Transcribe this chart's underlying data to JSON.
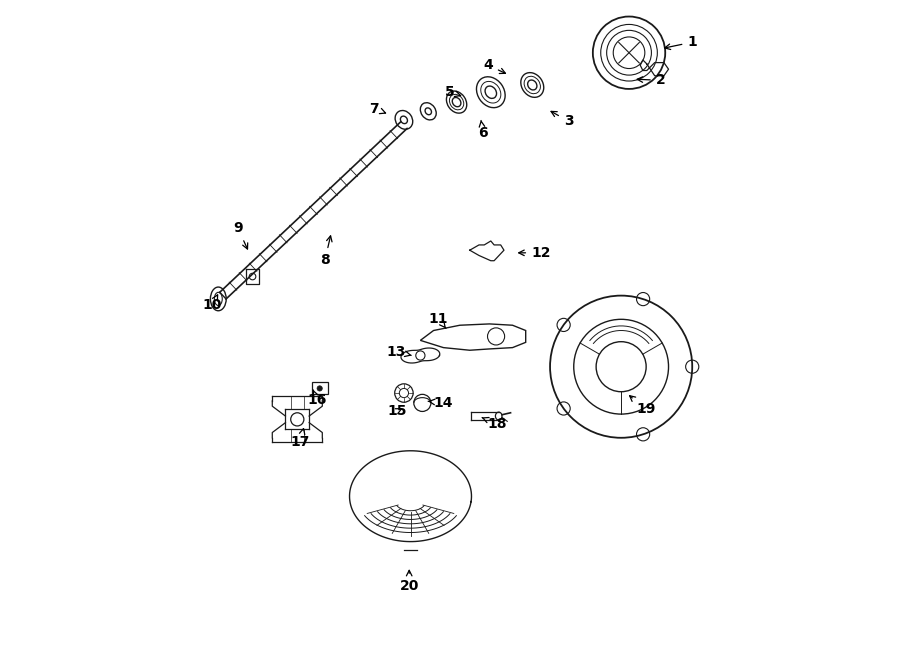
{
  "background_color": "#ffffff",
  "line_color": "#1a1a1a",
  "figsize": [
    9.0,
    6.61
  ],
  "dpi": 100,
  "label_data": [
    [
      1,
      0.868,
      0.938,
      0.82,
      0.928
    ],
    [
      2,
      0.82,
      0.88,
      0.778,
      0.882
    ],
    [
      3,
      0.68,
      0.818,
      0.648,
      0.836
    ],
    [
      4,
      0.558,
      0.903,
      0.59,
      0.888
    ],
    [
      5,
      0.5,
      0.862,
      0.522,
      0.855
    ],
    [
      6,
      0.55,
      0.8,
      0.547,
      0.82
    ],
    [
      7,
      0.385,
      0.837,
      0.408,
      0.828
    ],
    [
      8,
      0.31,
      0.607,
      0.32,
      0.65
    ],
    [
      9,
      0.178,
      0.655,
      0.195,
      0.618
    ],
    [
      10,
      0.138,
      0.538,
      0.148,
      0.556
    ],
    [
      11,
      0.482,
      0.518,
      0.494,
      0.503
    ],
    [
      12,
      0.638,
      0.618,
      0.598,
      0.618
    ],
    [
      13,
      0.418,
      0.468,
      0.442,
      0.462
    ],
    [
      14,
      0.49,
      0.39,
      0.462,
      0.393
    ],
    [
      15,
      0.42,
      0.378,
      0.432,
      0.384
    ],
    [
      16,
      0.298,
      0.395,
      0.292,
      0.41
    ],
    [
      17,
      0.272,
      0.33,
      0.278,
      0.353
    ],
    [
      18,
      0.572,
      0.358,
      0.548,
      0.368
    ],
    [
      19,
      0.798,
      0.38,
      0.768,
      0.405
    ],
    [
      20,
      0.438,
      0.112,
      0.438,
      0.142
    ]
  ]
}
